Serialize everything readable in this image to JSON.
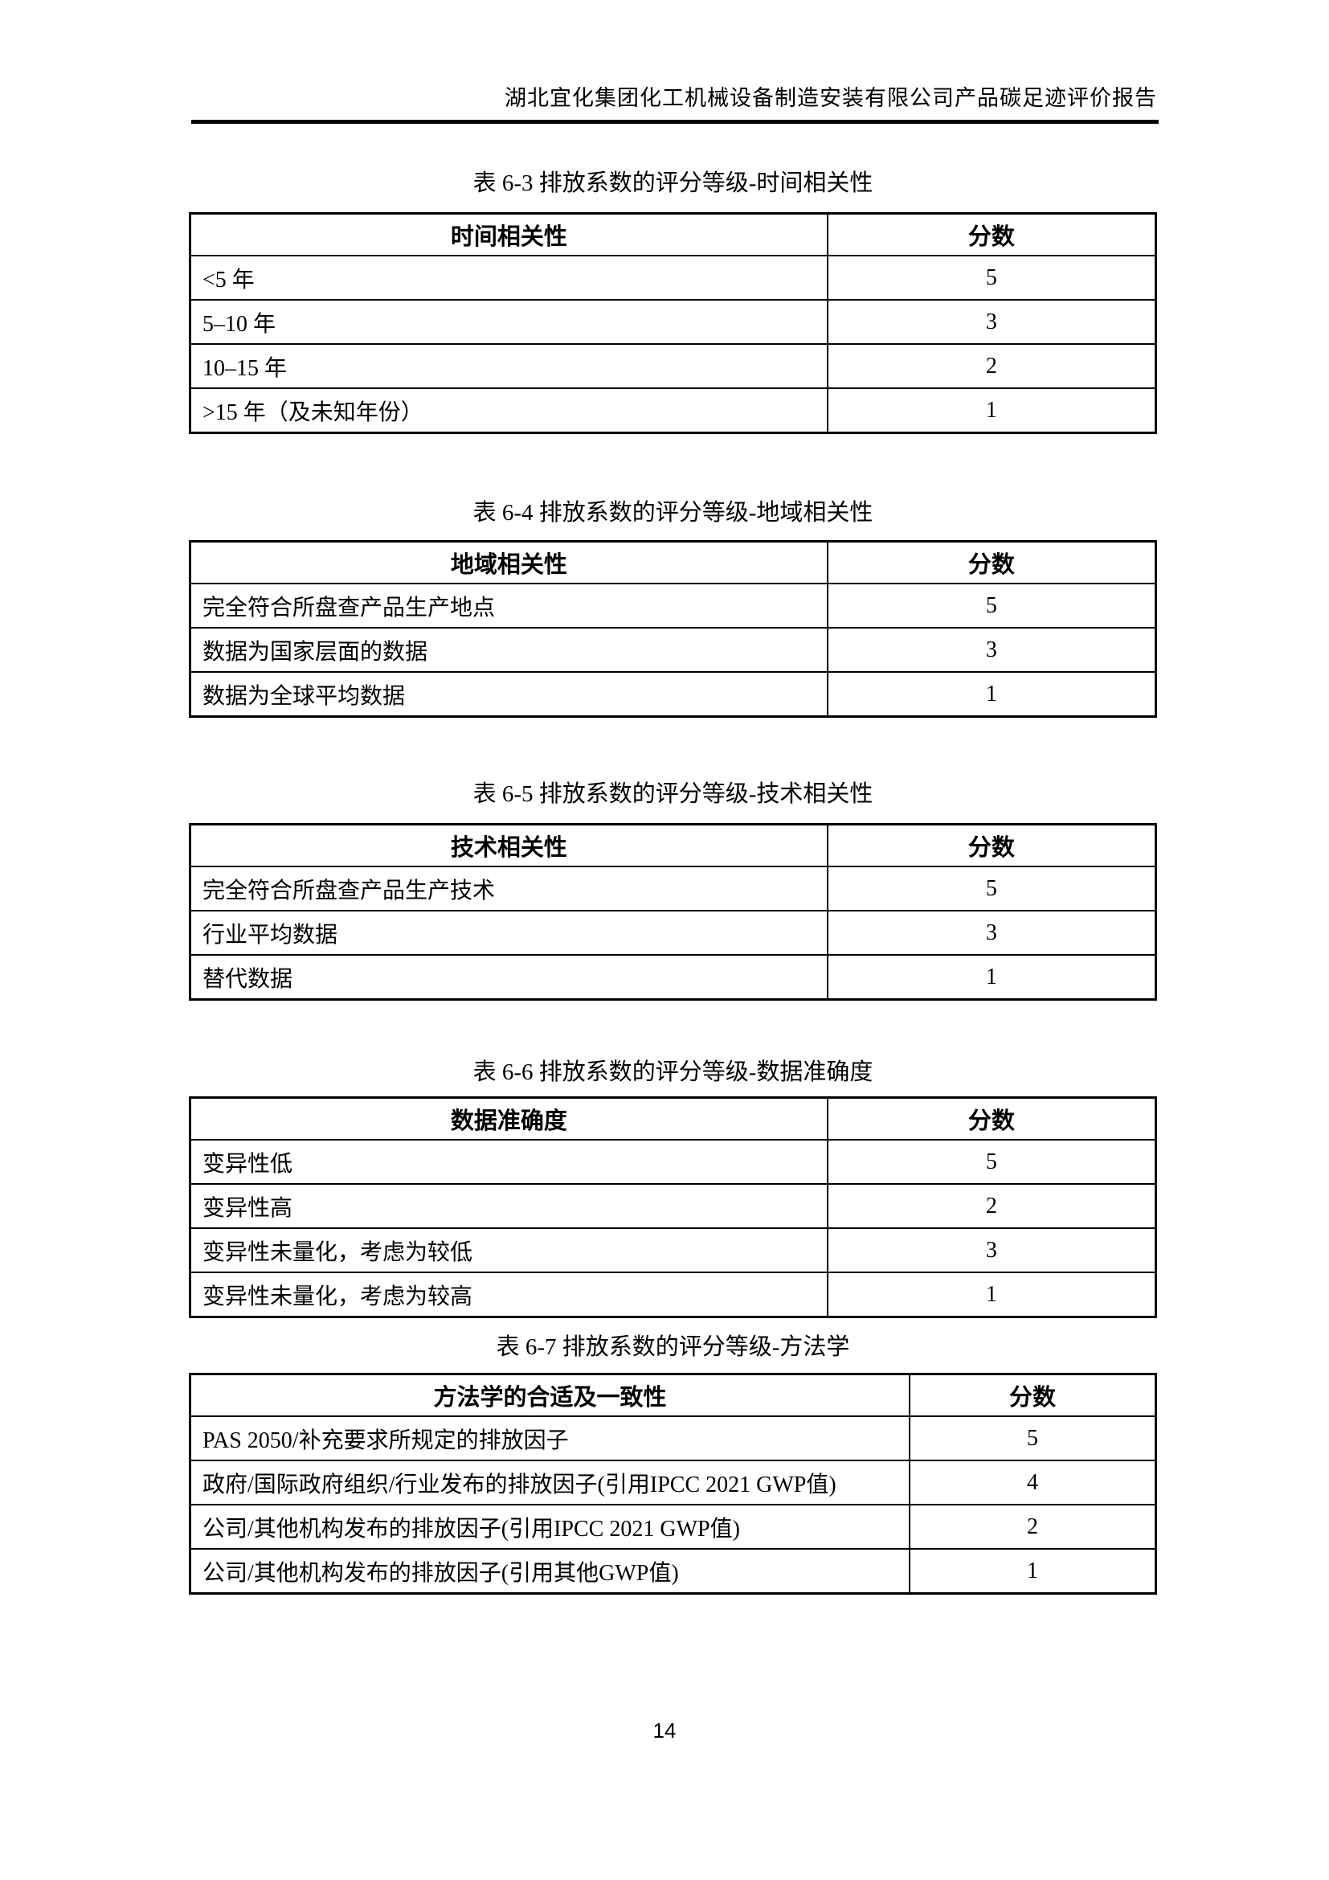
{
  "page": {
    "header_title": "湖北宜化集团化工机械设备制造安装有限公司产品碳足迹评价报告",
    "page_number": "14"
  },
  "tables": [
    {
      "title": "表 6-3 排放系数的评分等级-时间相关性",
      "col_headers": [
        "时间相关性",
        "分数"
      ],
      "rows": [
        [
          "<5 年",
          "5"
        ],
        [
          "5–10 年",
          "3"
        ],
        [
          "10–15 年",
          "2"
        ],
        [
          ">15 年（及未知年份）",
          "1"
        ]
      ]
    },
    {
      "title": "表 6-4 排放系数的评分等级-地域相关性",
      "col_headers": [
        "地域相关性",
        "分数"
      ],
      "rows": [
        [
          "完全符合所盘查产品生产地点",
          "5"
        ],
        [
          "数据为国家层面的数据",
          "3"
        ],
        [
          "数据为全球平均数据",
          "1"
        ]
      ]
    },
    {
      "title": "表 6-5 排放系数的评分等级-技术相关性",
      "col_headers": [
        "技术相关性",
        "分数"
      ],
      "rows": [
        [
          "完全符合所盘查产品生产技术",
          "5"
        ],
        [
          "行业平均数据",
          "3"
        ],
        [
          "替代数据",
          "1"
        ]
      ]
    },
    {
      "title": "表 6-6 排放系数的评分等级-数据准确度",
      "col_headers": [
        "数据准确度",
        "分数"
      ],
      "rows": [
        [
          "变异性低",
          "5"
        ],
        [
          "变异性高",
          "2"
        ],
        [
          "变异性未量化，考虑为较低",
          "3"
        ],
        [
          "变异性未量化，考虑为较高",
          "1"
        ]
      ]
    },
    {
      "title": "表 6-7 排放系数的评分等级-方法学",
      "col_headers": [
        "方法学的合适及一致性",
        "分数"
      ],
      "rows": [
        [
          "PAS 2050/补充要求所规定的排放因子",
          "5"
        ],
        [
          "政府/国际政府组织/行业发布的排放因子(引用IPCC 2021 GWP值)",
          "4"
        ],
        [
          "公司/其他机构发布的排放因子(引用IPCC 2021 GWP值)",
          "2"
        ],
        [
          "公司/其他机构发布的排放因子(引用其他GWP值)",
          "1"
        ]
      ]
    }
  ]
}
